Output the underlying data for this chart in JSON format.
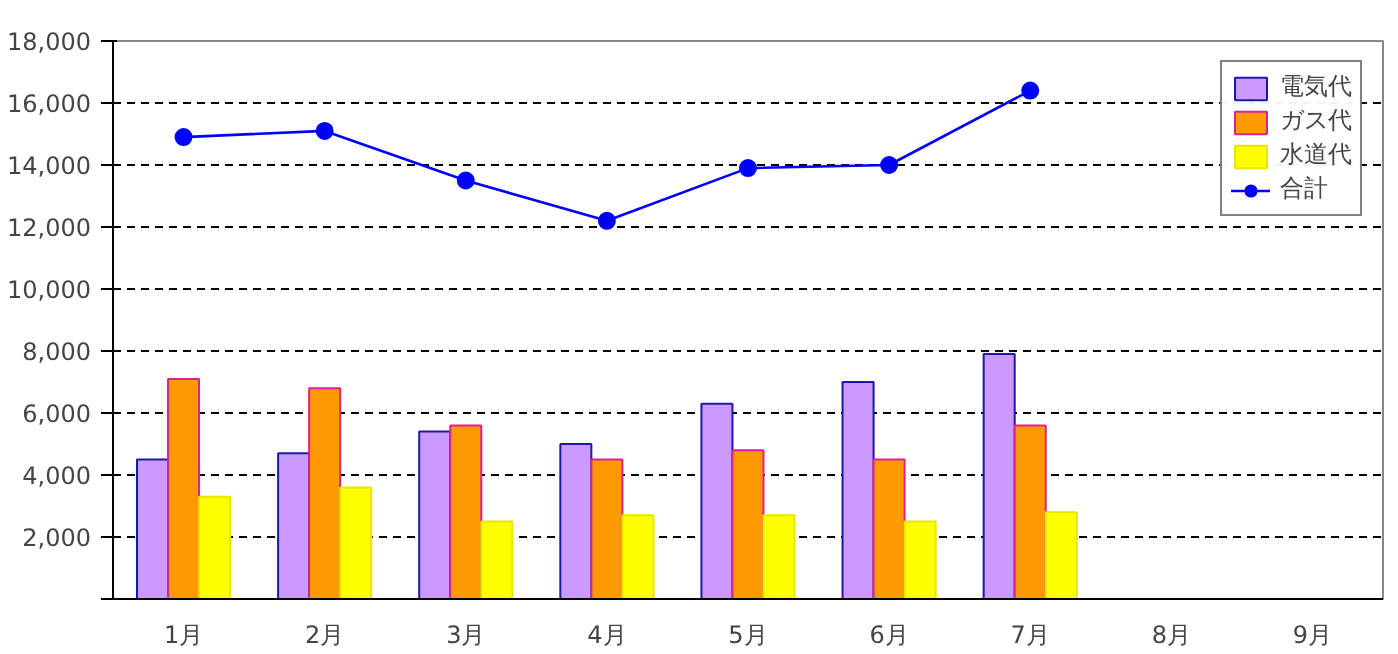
{
  "chart_data": {
    "type": "bar",
    "categories": [
      "1月",
      "2月",
      "3月",
      "4月",
      "5月",
      "6月",
      "7月",
      "8月",
      "9月"
    ],
    "series": [
      {
        "name": "電気代",
        "color": "#cc99ff",
        "values": [
          4500,
          4700,
          5400,
          5000,
          6300,
          7000,
          7900,
          null,
          null
        ]
      },
      {
        "name": "ガス代",
        "color": "#ff9900",
        "values": [
          7100,
          6800,
          5600,
          4500,
          4800,
          4500,
          5600,
          null,
          null
        ]
      },
      {
        "name": "水道代",
        "color": "#ffff00",
        "values": [
          3300,
          3600,
          2500,
          2700,
          2700,
          2500,
          2800,
          null,
          null
        ]
      },
      {
        "name": "合計",
        "type": "line",
        "color": "#0000ff",
        "marker": "circle",
        "values": [
          14900,
          15100,
          13500,
          12200,
          13900,
          14000,
          16400,
          null,
          null
        ]
      }
    ],
    "ylim": [
      0,
      18000
    ],
    "yticks": [
      {
        "value": 0,
        "label": null
      },
      {
        "value": 2000,
        "label": "2,000"
      },
      {
        "value": 4000,
        "label": "4,000"
      },
      {
        "value": 6000,
        "label": "6,000"
      },
      {
        "value": 8000,
        "label": "8,000"
      },
      {
        "value": 10000,
        "label": "10,000"
      },
      {
        "value": 12000,
        "label": "12,000"
      },
      {
        "value": 14000,
        "label": "14,000"
      },
      {
        "value": 16000,
        "label": "16,000"
      },
      {
        "value": 18000,
        "label": "18,000"
      }
    ],
    "grid": "y",
    "legend": "top right"
  }
}
